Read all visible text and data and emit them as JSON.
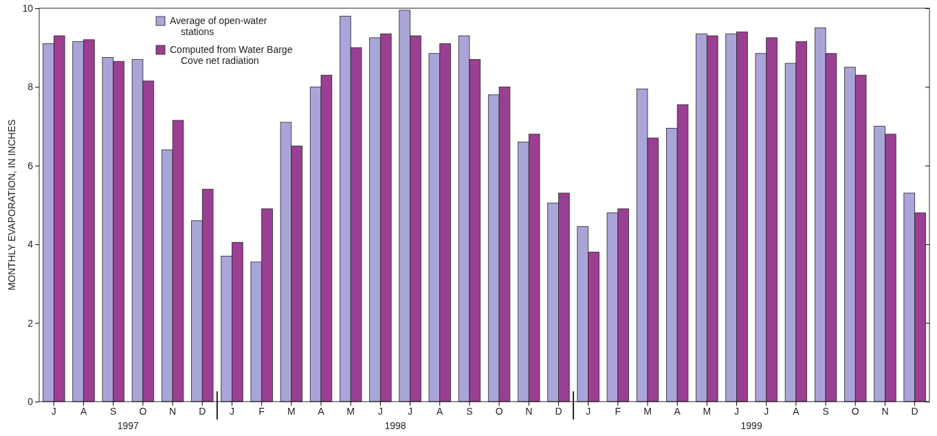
{
  "chart_data": {
    "type": "bar",
    "ylabel": "MONTHLY EVAPORATION, IN INCHES",
    "categories": [
      "J",
      "A",
      "S",
      "O",
      "N",
      "D",
      "J",
      "F",
      "M",
      "A",
      "M",
      "J",
      "J",
      "A",
      "S",
      "O",
      "N",
      "D",
      "J",
      "F",
      "M",
      "A",
      "M",
      "J",
      "J",
      "A",
      "S",
      "O",
      "N",
      "D"
    ],
    "series": [
      {
        "name": "Average of open-water stations",
        "color": "#aaa5d8",
        "values": [
          9.1,
          9.15,
          8.75,
          8.7,
          6.4,
          4.6,
          3.7,
          3.55,
          7.1,
          8.0,
          9.8,
          9.25,
          9.95,
          8.85,
          9.3,
          7.8,
          6.6,
          5.05,
          4.45,
          4.8,
          7.95,
          6.95,
          9.35,
          9.35,
          8.85,
          8.6,
          9.5,
          8.5,
          7.0,
          5.3
        ]
      },
      {
        "name": "Computed from Water Barge Cove net radiation",
        "color": "#9b3f92",
        "values": [
          9.3,
          9.2,
          8.65,
          8.15,
          7.15,
          5.4,
          4.05,
          4.9,
          6.5,
          8.3,
          9.0,
          9.35,
          9.3,
          9.1,
          8.7,
          8.0,
          6.8,
          5.3,
          3.8,
          4.9,
          6.7,
          7.55,
          9.3,
          9.4,
          9.25,
          9.15,
          8.85,
          8.3,
          6.8,
          4.8
        ]
      }
    ],
    "ylim": [
      0,
      10
    ],
    "yticks": [
      0,
      2,
      4,
      6,
      8,
      10
    ],
    "legend": "top left",
    "annotations": [
      "1997",
      "1998",
      "1999"
    ]
  }
}
